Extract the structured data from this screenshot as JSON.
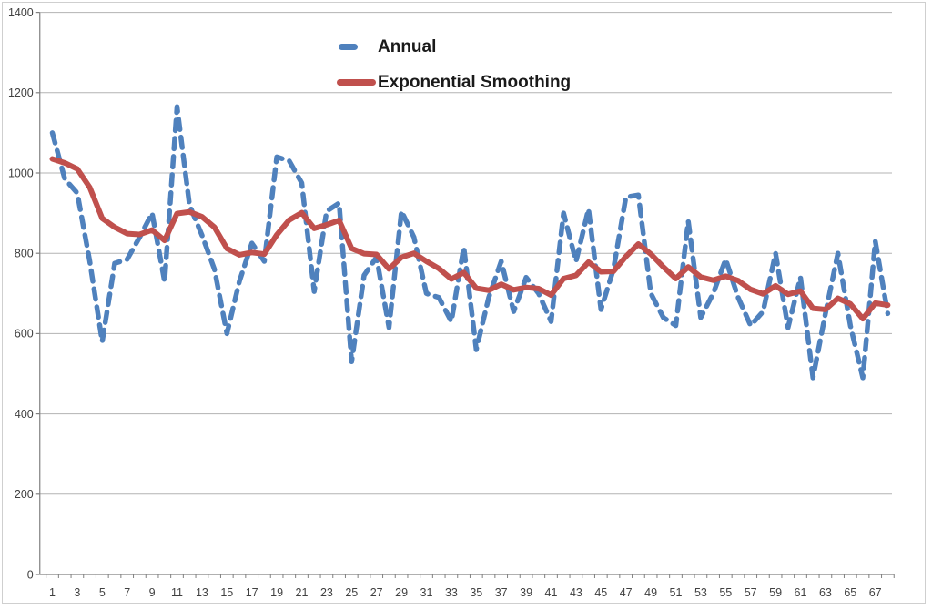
{
  "chart_data": {
    "type": "line",
    "title": "",
    "x": [
      1,
      2,
      3,
      4,
      5,
      6,
      7,
      8,
      9,
      10,
      11,
      12,
      13,
      14,
      15,
      16,
      17,
      18,
      19,
      20,
      21,
      22,
      23,
      24,
      25,
      26,
      27,
      28,
      29,
      30,
      31,
      32,
      33,
      34,
      35,
      36,
      37,
      38,
      39,
      40,
      41,
      42,
      43,
      44,
      45,
      46,
      47,
      48,
      49,
      50,
      51,
      52,
      53,
      54,
      55,
      56,
      57,
      58,
      59,
      60,
      61,
      62,
      63,
      64,
      65,
      66,
      67,
      68
    ],
    "x_tick_labels": [
      "1",
      "3",
      "5",
      "7",
      "9",
      "11",
      "13",
      "15",
      "17",
      "19",
      "21",
      "23",
      "25",
      "27",
      "29",
      "31",
      "33",
      "35",
      "37",
      "39",
      "41",
      "43",
      "45",
      "47",
      "49",
      "51",
      "53",
      "55",
      "57",
      "59",
      "61",
      "63",
      "65",
      "67"
    ],
    "y_ticks": [
      0,
      200,
      400,
      600,
      800,
      1000,
      1200,
      1400
    ],
    "y_tick_labels": [
      "0",
      "200",
      "400",
      "600",
      "800",
      "1000",
      "1200",
      "1400"
    ],
    "ylim": [
      0,
      1400
    ],
    "grid": "horizontal-only",
    "legend_position": "top-center",
    "series": [
      {
        "name": "Annual",
        "style": "dashed",
        "color": "#4F81BD",
        "values": [
          1100,
          985,
          950,
          780,
          580,
          775,
          785,
          840,
          900,
          730,
          1165,
          920,
          845,
          760,
          600,
          730,
          825,
          780,
          1040,
          1030,
          975,
          705,
          905,
          925,
          530,
          745,
          790,
          615,
          905,
          840,
          700,
          690,
          630,
          815,
          560,
          690,
          780,
          655,
          740,
          700,
          630,
          900,
          780,
          910,
          660,
          760,
          940,
          945,
          700,
          640,
          620,
          880,
          640,
          700,
          785,
          690,
          620,
          655,
          800,
          615,
          740,
          490,
          650,
          800,
          620,
          490,
          830,
          650
        ]
      },
      {
        "name": "Exponential Smoothing",
        "style": "solid",
        "color": "#C0504D",
        "values": [
          1035,
          1025,
          1010,
          964,
          887,
          865,
          849,
          847,
          858,
          832,
          899,
          903,
          891,
          865,
          812,
          796,
          802,
          798,
          846,
          883,
          901,
          862,
          871,
          882,
          812,
          799,
          797,
          761,
          790,
          800,
          780,
          762,
          736,
          752,
          713,
          708,
          723,
          709,
          715,
          712,
          696,
          737,
          745,
          778,
          754,
          755,
          792,
          823,
          798,
          766,
          737,
          766,
          741,
          733,
          743,
          732,
          710,
          699,
          719,
          698,
          706,
          663,
          660,
          688,
          674,
          637,
          676,
          671
        ]
      }
    ]
  },
  "colors": {
    "annual": "#4F81BD",
    "smoothing": "#C0504D",
    "gridline": "#b3b3b3",
    "axis": "#808080",
    "tick_text": "#404040",
    "legend_text": "#1a1a1a",
    "frame": "#cfcfcf"
  }
}
